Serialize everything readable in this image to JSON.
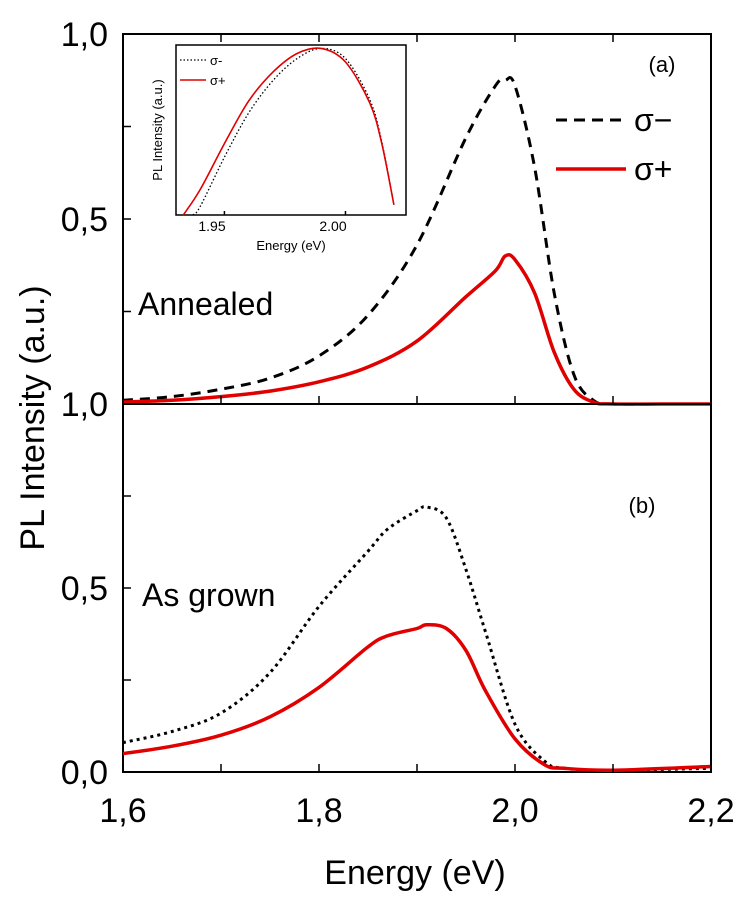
{
  "colors": {
    "sigma_minus": "#000000",
    "sigma_plus": "#e00000",
    "frame": "#000000"
  },
  "axes": {
    "xlabel": "Energy (eV)",
    "ylabel": "PL Intensity (a.u.)",
    "xlim": [
      1.6,
      2.2
    ],
    "x_ticks": [
      "1,6",
      "1,8",
      "2,0",
      "2,2"
    ]
  },
  "chart_data": [
    {
      "type": "line",
      "panel": "(a)",
      "annotation": "Annealed",
      "xlabel": "Energy (eV)",
      "ylabel": "PL Intensity (a.u.)",
      "xlim": [
        1.6,
        2.2
      ],
      "ylim": [
        0.0,
        1.0
      ],
      "y_ticks": [
        "1,0",
        "0,5",
        "1,0"
      ],
      "legend": {
        "position": "top-right",
        "entries": [
          "σ−",
          "σ+"
        ]
      },
      "series": [
        {
          "name": "σ−",
          "style": "dashed",
          "x": [
            1.6,
            1.65,
            1.7,
            1.75,
            1.8,
            1.85,
            1.9,
            1.95,
            1.98,
            1.99,
            2.0,
            2.02,
            2.04,
            2.06,
            2.08,
            2.1,
            2.15,
            2.2
          ],
          "y": [
            0.01,
            0.02,
            0.04,
            0.07,
            0.13,
            0.24,
            0.43,
            0.72,
            0.86,
            0.875,
            0.86,
            0.64,
            0.3,
            0.08,
            0.01,
            0.0,
            0.0,
            0.0
          ]
        },
        {
          "name": "σ+",
          "style": "solid",
          "x": [
            1.6,
            1.65,
            1.7,
            1.75,
            1.8,
            1.85,
            1.9,
            1.95,
            1.98,
            1.99,
            2.0,
            2.02,
            2.04,
            2.06,
            2.08,
            2.1,
            2.15,
            2.2
          ],
          "y": [
            0.005,
            0.01,
            0.02,
            0.035,
            0.06,
            0.1,
            0.17,
            0.29,
            0.36,
            0.4,
            0.39,
            0.3,
            0.14,
            0.04,
            0.005,
            0.0,
            0.0,
            0.0
          ]
        }
      ]
    },
    {
      "type": "line",
      "panel": "(b)",
      "annotation": "As grown",
      "xlabel": "Energy (eV)",
      "ylabel": "PL Intensity (a.u.)",
      "xlim": [
        1.6,
        2.2
      ],
      "ylim": [
        0.0,
        1.0
      ],
      "y_ticks": [
        "0,0",
        "0,5"
      ],
      "series": [
        {
          "name": "σ−",
          "style": "dotted-then-dashed",
          "x": [
            1.6,
            1.65,
            1.7,
            1.75,
            1.8,
            1.85,
            1.87,
            1.9,
            1.91,
            1.93,
            1.95,
            1.97,
            2.0,
            2.03,
            2.05,
            2.1,
            2.2
          ],
          "y": [
            0.08,
            0.11,
            0.16,
            0.27,
            0.45,
            0.6,
            0.66,
            0.71,
            0.72,
            0.69,
            0.55,
            0.38,
            0.13,
            0.03,
            0.01,
            0.005,
            0.01
          ]
        },
        {
          "name": "σ+",
          "style": "solid",
          "x": [
            1.6,
            1.65,
            1.7,
            1.75,
            1.8,
            1.85,
            1.87,
            1.9,
            1.91,
            1.93,
            1.95,
            1.97,
            2.0,
            2.03,
            2.05,
            2.1,
            2.2
          ],
          "y": [
            0.05,
            0.07,
            0.1,
            0.15,
            0.23,
            0.34,
            0.37,
            0.39,
            0.4,
            0.39,
            0.33,
            0.22,
            0.09,
            0.02,
            0.01,
            0.005,
            0.015
          ]
        }
      ]
    },
    {
      "type": "line",
      "role": "inset",
      "xlabel": "Energy (eV)",
      "ylabel": "PL Intensity (a.u.)",
      "xlim": [
        1.93,
        2.025
      ],
      "ylim": [
        0.0,
        1.0
      ],
      "x_ticks": [
        "1.95",
        "2.00"
      ],
      "legend": {
        "position": "top-left",
        "entries": [
          "σ-",
          "σ+"
        ]
      },
      "series": [
        {
          "name": "σ-",
          "style": "dotted",
          "x": [
            1.937,
            1.94,
            1.95,
            1.96,
            1.97,
            1.98,
            1.99,
            2.0,
            2.01,
            2.015,
            2.02
          ],
          "y": [
            0.0,
            0.05,
            0.34,
            0.6,
            0.79,
            0.92,
            0.98,
            0.92,
            0.68,
            0.43,
            0.06
          ]
        },
        {
          "name": "σ+",
          "style": "solid",
          "x": [
            1.933,
            1.94,
            1.95,
            1.96,
            1.97,
            1.98,
            1.99,
            2.0,
            2.01,
            2.015,
            2.02
          ],
          "y": [
            0.0,
            0.15,
            0.42,
            0.67,
            0.84,
            0.95,
            0.98,
            0.9,
            0.66,
            0.42,
            0.06
          ]
        }
      ]
    }
  ]
}
